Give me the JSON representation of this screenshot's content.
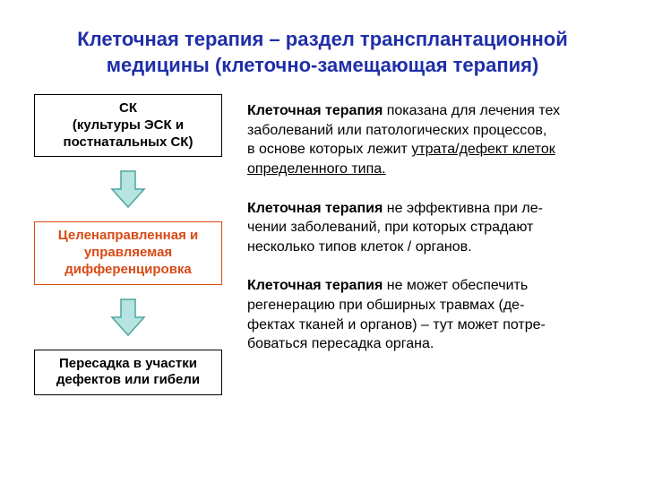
{
  "page": {
    "background_color": "#ffffff"
  },
  "title": {
    "line1": "Клеточная терапия – раздел трансплантационной",
    "line2": "медицины (клеточно-замещающая терапия)",
    "color": "#1f2ea8",
    "fontsize": 22,
    "fontweight": "bold"
  },
  "flow": {
    "box1": {
      "line1": "СК",
      "line2": "(культуры ЭСК и",
      "line3": "постнатальных СК)",
      "border_color": "#000000",
      "text_color": "#000000",
      "bg_color": "#ffffff",
      "fontsize": 15
    },
    "box2": {
      "line1": "Целенаправленная и",
      "line2": "управляемая",
      "line3": "дифференцировка",
      "border_color": "#d94a16",
      "text_color": "#d94a16",
      "bg_color": "#ffffff",
      "fontsize": 15
    },
    "box3": {
      "line1": "Пересадка в участки",
      "line2": "дефектов или гибели",
      "border_color": "#000000",
      "text_color": "#000000",
      "bg_color": "#ffffff",
      "fontsize": 15
    },
    "arrow": {
      "fill_color": "#b7e4e0",
      "stroke_color": "#4aa69e",
      "width": 44,
      "height": 44
    }
  },
  "paragraphs": {
    "fontsize": 16,
    "text_color": "#000000",
    "p1": {
      "bold": "Клеточная терапия",
      "rest1": " показана для лечения тех",
      "rest2": "заболеваний или патологических процессов,",
      "rest3": "в основе которых лежит ",
      "under1": "утрата/дефект клеток",
      "under2": "определенного типа."
    },
    "p2": {
      "bold": "Клеточная терапия",
      "rest1": " не эффективна при ле-",
      "rest2": "чении заболеваний, при которых страдают",
      "rest3": "несколько типов клеток / органов."
    },
    "p3": {
      "bold": "Клеточная терапия",
      "rest1": " не может обеспечить",
      "rest2": "регенерацию при обширных травмах (де-",
      "rest3": "фектах тканей и органов) – тут может потре-",
      "rest4": "боваться пересадка органа."
    }
  }
}
